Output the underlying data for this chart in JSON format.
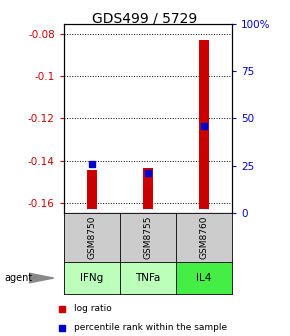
{
  "title": "GDS499 / 5729",
  "samples": [
    "GSM8750",
    "GSM8755",
    "GSM8760"
  ],
  "agents": [
    "IFNg",
    "TNFa",
    "IL4"
  ],
  "log_ratios": [
    -0.1445,
    -0.1435,
    -0.083
  ],
  "log_ratio_base": -0.163,
  "percentile_ranks": [
    26.0,
    21.0,
    46.0
  ],
  "ylim_left": [
    -0.165,
    -0.075
  ],
  "ylim_right": [
    0,
    100
  ],
  "left_ticks": [
    -0.16,
    -0.14,
    -0.12,
    -0.1,
    -0.08
  ],
  "right_ticks": [
    0,
    25,
    50,
    75,
    100
  ],
  "right_tick_labels": [
    "0",
    "25",
    "50",
    "75",
    "100%"
  ],
  "bar_width": 0.18,
  "bar_color": "#cc0000",
  "sq_color": "#0000cc",
  "agent_colors": [
    "#bbffbb",
    "#bbffbb",
    "#44ee44"
  ],
  "sample_bg": "#cccccc",
  "title_fontsize": 10,
  "axis_fontsize": 7.5,
  "tick_color_left": "#cc0000",
  "tick_color_right": "#0000cc"
}
